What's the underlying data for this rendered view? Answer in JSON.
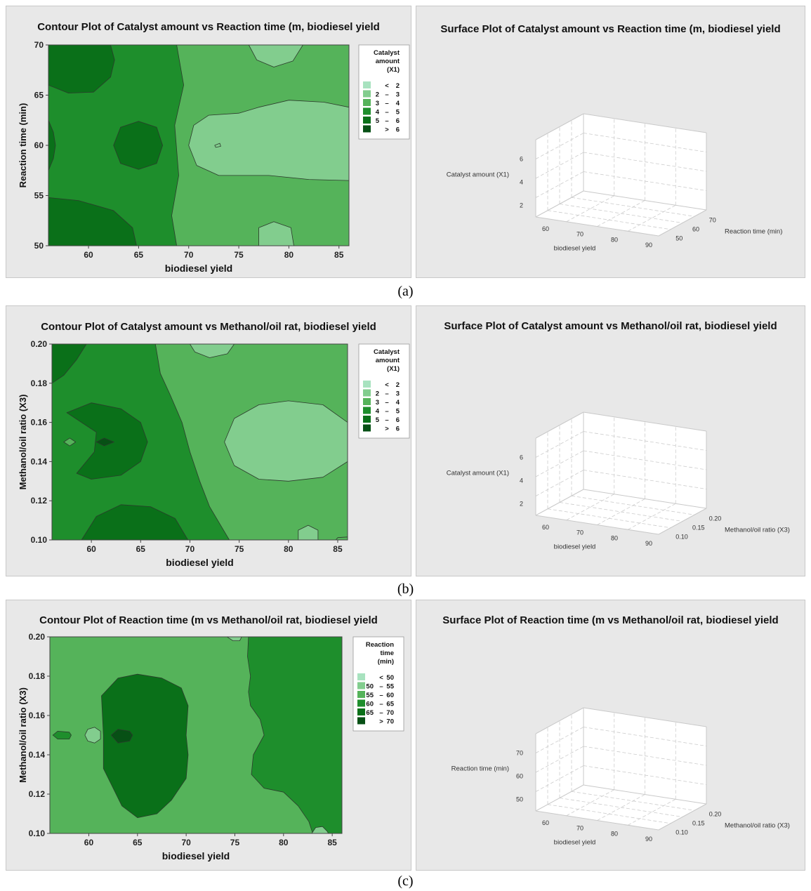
{
  "colors": {
    "panel_bg": "#e8e8e8",
    "bands": [
      "#a8e2bf",
      "#82cd8e",
      "#55b35a",
      "#1e8e2c",
      "#0a7019",
      "#075015"
    ]
  },
  "captions": [
    "(a)",
    "(b)",
    "(c)"
  ],
  "chart_data": [
    {
      "type": "contour",
      "title": "Contour Plot of Catalyst amount  vs Reaction time (m, biodiesel yield",
      "xlabel": "biodiesel yield",
      "ylabel": "Reaction time (min)",
      "xlim": [
        56,
        86
      ],
      "ylim": [
        50,
        70
      ],
      "xticks": [
        "60",
        "65",
        "70",
        "75",
        "80",
        "85"
      ],
      "yticks": [
        "50",
        "55",
        "60",
        "65",
        "70"
      ],
      "legend": {
        "title": [
          "Catalyst",
          "amount",
          "(X1)"
        ],
        "entries": [
          {
            "lo": "",
            "sep": "<",
            "hi": "2"
          },
          {
            "lo": "2",
            "sep": "–",
            "hi": "3"
          },
          {
            "lo": "3",
            "sep": "–",
            "hi": "4"
          },
          {
            "lo": "4",
            "sep": "–",
            "hi": "5"
          },
          {
            "lo": "5",
            "sep": "–",
            "hi": "6"
          },
          {
            "lo": "",
            "sep": ">",
            "hi": "6"
          }
        ]
      },
      "base_level": 4,
      "regions": [
        {
          "level": 3,
          "poly": [
            [
              68.8,
              50
            ],
            [
              86,
              50
            ],
            [
              86,
              70
            ],
            [
              68.8,
              70
            ],
            [
              69.5,
              66
            ],
            [
              68.6,
              62
            ],
            [
              69,
              57
            ],
            [
              68.3,
              53
            ]
          ]
        },
        {
          "level": 2,
          "poly": [
            [
              86,
              56.5
            ],
            [
              86,
              63.8
            ],
            [
              83.5,
              64.3
            ],
            [
              80,
              64.5
            ],
            [
              77,
              63.8
            ],
            [
              75,
              63.2
            ],
            [
              72,
              63
            ],
            [
              70.5,
              62
            ],
            [
              70,
              60
            ],
            [
              70.8,
              58
            ],
            [
              73,
              57
            ],
            [
              78,
              57
            ],
            [
              82,
              56.6
            ]
          ]
        },
        {
          "level": 2,
          "poly": [
            [
              76,
              70
            ],
            [
              76.8,
              68.5
            ],
            [
              78.5,
              67.8
            ],
            [
              80.4,
              68.4
            ],
            [
              81.4,
              70
            ]
          ]
        },
        {
          "level": 2,
          "poly": [
            [
              77,
              50
            ],
            [
              77,
              51.8
            ],
            [
              78.5,
              52.4
            ],
            [
              80.2,
              51.8
            ],
            [
              80.5,
              50
            ]
          ]
        },
        {
          "level": 5,
          "poly": [
            [
              56,
              70
            ],
            [
              56,
              66
            ],
            [
              58,
              65.2
            ],
            [
              60.5,
              65.3
            ],
            [
              62.2,
              66.8
            ],
            [
              62.6,
              68.5
            ],
            [
              62.2,
              70
            ]
          ]
        },
        {
          "level": 5,
          "poly": [
            [
              62.5,
              60
            ],
            [
              63.2,
              61.8
            ],
            [
              65,
              62.4
            ],
            [
              66.8,
              61.8
            ],
            [
              67.4,
              60
            ],
            [
              66.8,
              58.2
            ],
            [
              65,
              57.6
            ],
            [
              63.2,
              58.2
            ]
          ]
        },
        {
          "level": 5,
          "poly": [
            [
              56,
              62.5
            ],
            [
              56.5,
              61.3
            ],
            [
              56.7,
              60
            ],
            [
              56.5,
              58.7
            ],
            [
              56,
              57.5
            ]
          ]
        },
        {
          "level": 5,
          "poly": [
            [
              56,
              50
            ],
            [
              56,
              54.8
            ],
            [
              59,
              54.5
            ],
            [
              62.5,
              53.5
            ],
            [
              64.4,
              51.8
            ],
            [
              64.8,
              50
            ]
          ]
        },
        {
          "level": 2,
          "poly": [
            [
              72.6,
              60
            ],
            [
              73.1,
              60.2
            ],
            [
              73.2,
              59.9
            ],
            [
              72.7,
              59.8
            ]
          ]
        }
      ]
    },
    {
      "type": "surface",
      "title": "Surface Plot of Catalyst amount  vs Reaction time (m, biodiesel yield",
      "zlabel": "Catalyst amount (X1)",
      "zticks": [
        "2",
        "4",
        "6"
      ],
      "xlabel": "biodiesel yield",
      "xticks": [
        "60",
        "70",
        "80",
        "90"
      ],
      "ylabel": "Reaction time (min)",
      "yticks": [
        "50",
        "60",
        "70"
      ]
    },
    {
      "type": "contour",
      "title": "Contour Plot of Catalyst amount  vs Methanol/oil rat, biodiesel yield",
      "xlabel": "biodiesel yield",
      "ylabel": "Methanol/oil ratio (X3)",
      "xlim": [
        56,
        86
      ],
      "ylim": [
        0.1,
        0.2
      ],
      "xticks": [
        "60",
        "65",
        "70",
        "75",
        "80",
        "85"
      ],
      "yticks": [
        "0.10",
        "0.12",
        "0.14",
        "0.16",
        "0.18",
        "0.20"
      ],
      "legend": {
        "title": [
          "Catalyst",
          "amount",
          "(X1)"
        ],
        "entries": [
          {
            "lo": "",
            "sep": "<",
            "hi": "2"
          },
          {
            "lo": "2",
            "sep": "–",
            "hi": "3"
          },
          {
            "lo": "3",
            "sep": "–",
            "hi": "4"
          },
          {
            "lo": "4",
            "sep": "–",
            "hi": "5"
          },
          {
            "lo": "5",
            "sep": "–",
            "hi": "6"
          },
          {
            "lo": "",
            "sep": ">",
            "hi": "6"
          }
        ]
      },
      "base_level": 4,
      "regions": [
        {
          "level": 3,
          "poly": [
            [
              66.5,
              0.2
            ],
            [
              86,
              0.2
            ],
            [
              86,
              0.1
            ],
            [
              74,
              0.1
            ],
            [
              72,
              0.117
            ],
            [
              71,
              0.13
            ],
            [
              70,
              0.145
            ],
            [
              69.2,
              0.16
            ],
            [
              68,
              0.174
            ],
            [
              67,
              0.185
            ]
          ]
        },
        {
          "level": 2,
          "poly": [
            [
              73.5,
              0.15
            ],
            [
              74.5,
              0.162
            ],
            [
              77,
              0.169
            ],
            [
              80,
              0.171
            ],
            [
              83.5,
              0.169
            ],
            [
              86,
              0.16
            ],
            [
              86,
              0.14
            ],
            [
              83.5,
              0.132
            ],
            [
              80,
              0.13
            ],
            [
              77,
              0.131
            ],
            [
              74.5,
              0.138
            ]
          ]
        },
        {
          "level": 2,
          "poly": [
            [
              70,
              0.2
            ],
            [
              70.5,
              0.196
            ],
            [
              72,
              0.193
            ],
            [
              73.8,
              0.195
            ],
            [
              74.5,
              0.2
            ]
          ]
        },
        {
          "level": 2,
          "poly": [
            [
              81,
              0.1
            ],
            [
              81,
              0.105
            ],
            [
              82,
              0.1075
            ],
            [
              83,
              0.105
            ],
            [
              83,
              0.1
            ]
          ]
        },
        {
          "level": 5,
          "poly": [
            [
              56,
              0.2
            ],
            [
              56,
              0.18
            ],
            [
              57.2,
              0.184
            ],
            [
              58.5,
              0.192
            ],
            [
              59.5,
              0.2
            ]
          ]
        },
        {
          "level": 5,
          "poly": [
            [
              57.5,
              0.165
            ],
            [
              60,
              0.17
            ],
            [
              63,
              0.167
            ],
            [
              65,
              0.16
            ],
            [
              65.7,
              0.15
            ],
            [
              65,
              0.14
            ],
            [
              63,
              0.133
            ],
            [
              60,
              0.131
            ],
            [
              58.5,
              0.134
            ],
            [
              60.3,
              0.145
            ],
            [
              60.5,
              0.155
            ]
          ]
        },
        {
          "level": 5,
          "poly": [
            [
              59,
              0.1
            ],
            [
              60.5,
              0.112
            ],
            [
              63,
              0.118
            ],
            [
              66,
              0.117
            ],
            [
              68.5,
              0.111
            ],
            [
              69.8,
              0.1
            ]
          ]
        },
        {
          "level": 6,
          "poly": [
            [
              60.5,
              0.15
            ],
            [
              61.3,
              0.152
            ],
            [
              62.3,
              0.15
            ],
            [
              61.3,
              0.148
            ]
          ]
        },
        {
          "level": 3,
          "poly": [
            [
              57.2,
              0.15
            ],
            [
              57.8,
              0.152
            ],
            [
              58.4,
              0.15
            ],
            [
              57.8,
              0.148
            ]
          ]
        },
        {
          "level": 3,
          "poly": [
            [
              84.8,
              0.1
            ],
            [
              86,
              0.1
            ],
            [
              86,
              0.1015
            ],
            [
              85,
              0.1012
            ]
          ]
        }
      ]
    },
    {
      "type": "surface",
      "title": "Surface Plot of Catalyst amount  vs Methanol/oil rat, biodiesel yield",
      "zlabel": "Catalyst amount (X1)",
      "zticks": [
        "2",
        "4",
        "6"
      ],
      "xlabel": "biodiesel yield",
      "xticks": [
        "60",
        "70",
        "80",
        "90"
      ],
      "ylabel": "Methanol/oil ratio (X3)",
      "yticks": [
        "0.10",
        "0.15",
        "0.20"
      ]
    },
    {
      "type": "contour",
      "title": "Contour Plot of Reaction time (m vs Methanol/oil rat, biodiesel yield",
      "xlabel": "biodiesel yield",
      "ylabel": "Methanol/oil ratio (X3)",
      "xlim": [
        56,
        86
      ],
      "ylim": [
        0.1,
        0.2
      ],
      "xticks": [
        "60",
        "65",
        "70",
        "75",
        "80",
        "85"
      ],
      "yticks": [
        "0.10",
        "0.12",
        "0.14",
        "0.16",
        "0.18",
        "0.20"
      ],
      "legend": {
        "title": [
          "Reaction",
          "time",
          "(min)"
        ],
        "entries": [
          {
            "lo": "",
            "sep": "<",
            "hi": "50"
          },
          {
            "lo": "50",
            "sep": "–",
            "hi": "55"
          },
          {
            "lo": "55",
            "sep": "–",
            "hi": "60"
          },
          {
            "lo": "60",
            "sep": "–",
            "hi": "65"
          },
          {
            "lo": "65",
            "sep": "–",
            "hi": "70"
          },
          {
            "lo": "",
            "sep": ">",
            "hi": "70"
          }
        ]
      },
      "base_level": 3,
      "regions": [
        {
          "level": 4,
          "poly": [
            [
              77,
              0.2
            ],
            [
              86,
              0.2
            ],
            [
              86,
              0.1
            ],
            [
              83,
              0.1
            ],
            [
              82.6,
              0.106
            ],
            [
              81.5,
              0.114
            ],
            [
              80,
              0.121
            ],
            [
              78,
              0.123
            ],
            [
              76.7,
              0.13
            ],
            [
              76.9,
              0.14
            ],
            [
              78,
              0.15
            ],
            [
              77.6,
              0.158
            ],
            [
              76.6,
              0.165
            ],
            [
              76.4,
              0.172
            ],
            [
              76.6,
              0.18
            ],
            [
              76.3,
              0.19
            ],
            [
              76.4,
              0.2
            ]
          ]
        },
        {
          "level": 5,
          "poly": [
            [
              61.3,
              0.17
            ],
            [
              61.5,
              0.15
            ],
            [
              61.5,
              0.133
            ],
            [
              62.3,
              0.125
            ],
            [
              63.4,
              0.114
            ],
            [
              65,
              0.108
            ],
            [
              67,
              0.11
            ],
            [
              68.5,
              0.117
            ],
            [
              70,
              0.128
            ],
            [
              70.2,
              0.14
            ],
            [
              70,
              0.15
            ],
            [
              70.2,
              0.165
            ],
            [
              69.5,
              0.174
            ],
            [
              67.5,
              0.179
            ],
            [
              65,
              0.181
            ],
            [
              63,
              0.179
            ]
          ]
        },
        {
          "level": 6,
          "poly": [
            [
              62.3,
              0.15
            ],
            [
              63,
              0.153
            ],
            [
              64.2,
              0.152
            ],
            [
              64.5,
              0.15
            ],
            [
              64.2,
              0.147
            ],
            [
              63,
              0.146
            ]
          ]
        },
        {
          "level": 4,
          "poly": [
            [
              56.3,
              0.15
            ],
            [
              56.8,
              0.152
            ],
            [
              58,
              0.1515
            ],
            [
              58.2,
              0.15
            ],
            [
              58,
              0.148
            ],
            [
              56.8,
              0.148
            ]
          ]
        },
        {
          "level": 2,
          "poly": [
            [
              59.6,
              0.15
            ],
            [
              59.9,
              0.153
            ],
            [
              60.6,
              0.154
            ],
            [
              61.2,
              0.152
            ],
            [
              61.2,
              0.148
            ],
            [
              60.6,
              0.146
            ],
            [
              59.9,
              0.147
            ]
          ]
        },
        {
          "level": 2,
          "poly": [
            [
              74.2,
              0.2
            ],
            [
              74.8,
              0.198
            ],
            [
              75.5,
              0.198
            ],
            [
              75.7,
              0.2
            ]
          ]
        },
        {
          "level": 2,
          "poly": [
            [
              82.9,
              0.1
            ],
            [
              83.3,
              0.103
            ],
            [
              84,
              0.1035
            ],
            [
              84.5,
              0.101
            ],
            [
              84.6,
              0.1
            ]
          ]
        }
      ]
    },
    {
      "type": "surface",
      "title": "Surface Plot of Reaction time (m vs Methanol/oil rat, biodiesel yield",
      "zlabel": "Reaction time (min)",
      "zticks": [
        "50",
        "60",
        "70"
      ],
      "xlabel": "biodiesel yield",
      "xticks": [
        "60",
        "70",
        "80",
        "90"
      ],
      "ylabel": "Methanol/oil ratio (X3)",
      "yticks": [
        "0.10",
        "0.15",
        "0.20"
      ]
    }
  ]
}
